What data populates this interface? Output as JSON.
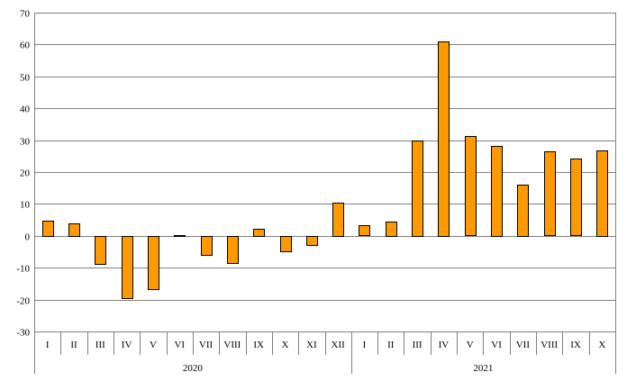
{
  "chart_data": {
    "type": "bar",
    "title": "",
    "xlabel": "",
    "ylabel": "",
    "ylim": [
      -30,
      70
    ],
    "y_ticks": [
      -30,
      -20,
      -10,
      0,
      10,
      20,
      30,
      40,
      50,
      60,
      70
    ],
    "grid": true,
    "legend": "none",
    "bar_color": "#ff9900",
    "categories": [
      "I",
      "II",
      "III",
      "IV",
      "V",
      "VI",
      "VII",
      "VIII",
      "IX",
      "X",
      "XI",
      "XII",
      "I",
      "II",
      "III",
      "IV",
      "V",
      "VI",
      "VII",
      "VIII",
      "IX",
      "X"
    ],
    "groups": [
      {
        "label": "2020",
        "count": 12
      },
      {
        "label": "2021",
        "count": 10
      }
    ],
    "values": [
      4.7,
      4.0,
      -8.8,
      -19.6,
      -16.7,
      0.2,
      -5.8,
      -8.6,
      2.2,
      -4.7,
      -2.8,
      10.4,
      3.2,
      4.6,
      30.0,
      61.0,
      31.2,
      28.3,
      16.1,
      26.4,
      24.1,
      26.9
    ]
  }
}
